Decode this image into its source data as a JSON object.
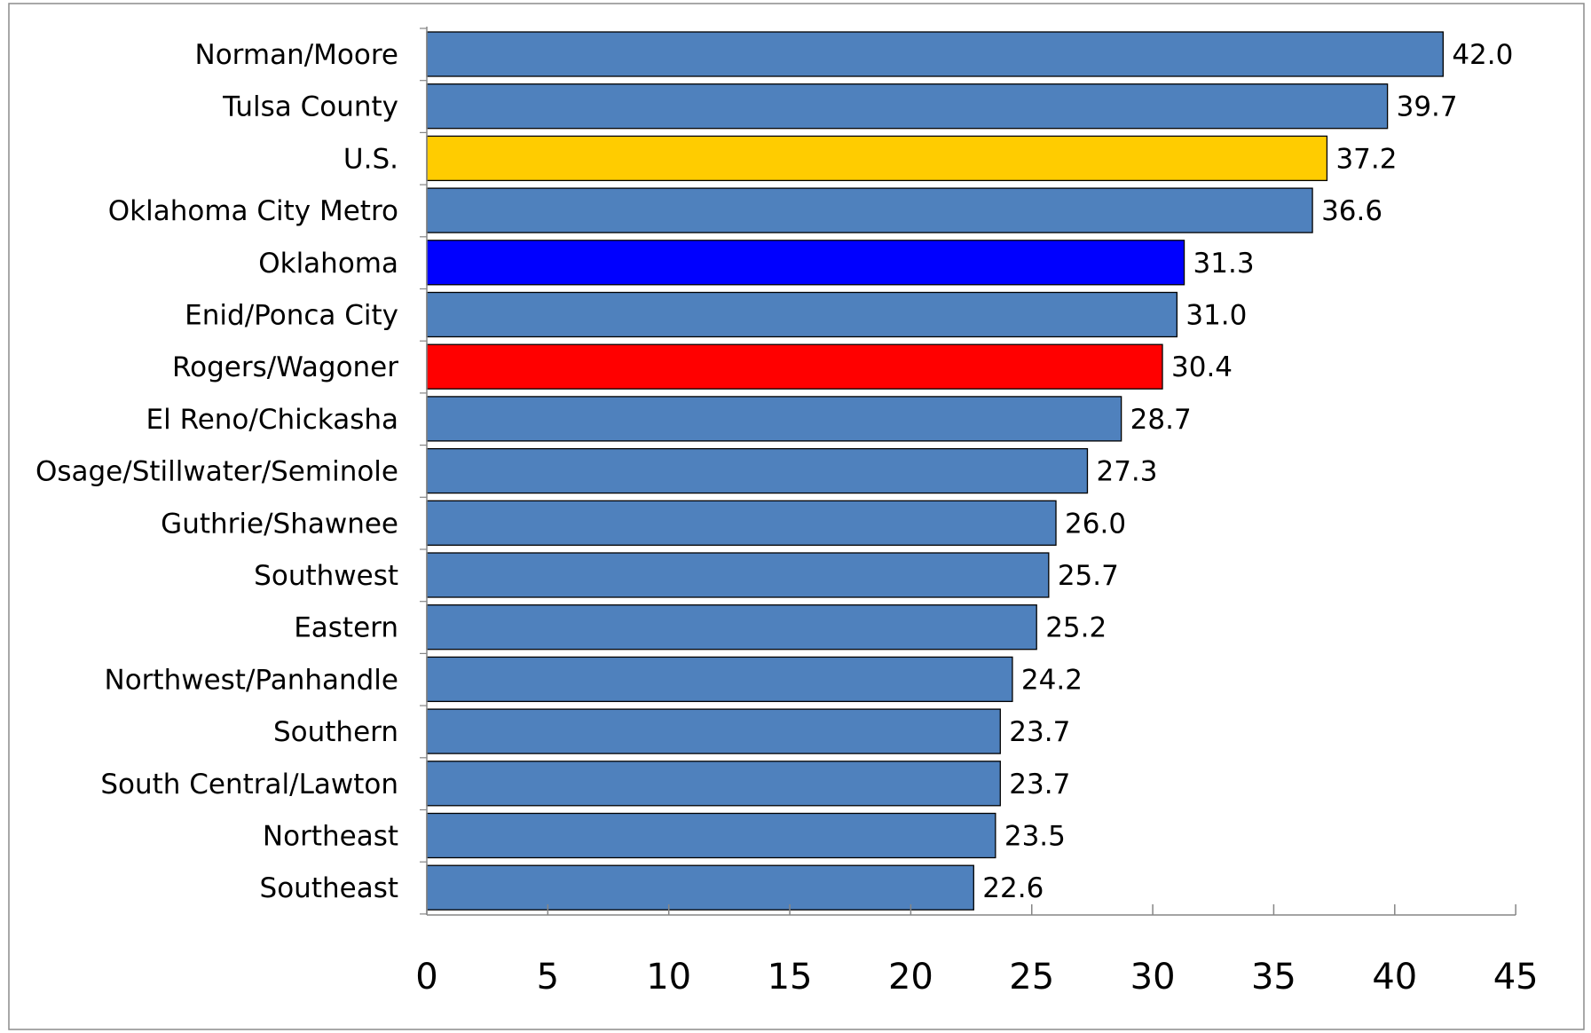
{
  "chart_data": {
    "type": "bar",
    "orientation": "horizontal",
    "title": "",
    "xlabel": "",
    "ylabel": "",
    "xlim": [
      0,
      45
    ],
    "x_ticks": [
      0,
      5,
      10,
      15,
      20,
      25,
      30,
      35,
      40,
      45
    ],
    "grid": false,
    "legend": "none",
    "categories": [
      "Norman/Moore",
      "Tulsa County",
      "U.S.",
      "Oklahoma City Metro",
      "Oklahoma",
      "Enid/Ponca City",
      "Rogers/Wagoner",
      "El Reno/Chickasha",
      "Osage/Stillwater/Seminole",
      "Guthrie/Shawnee",
      "Southwest",
      "Eastern",
      "Northwest/Panhandle",
      "Southern",
      "South Central/Lawton",
      "Northeast",
      "Southeast"
    ],
    "values": [
      42.0,
      39.7,
      37.2,
      36.6,
      31.3,
      31.0,
      30.4,
      28.7,
      27.3,
      26.0,
      25.7,
      25.2,
      24.2,
      23.7,
      23.7,
      23.5,
      22.6
    ],
    "value_labels": [
      "42.0",
      "39.7",
      "37.2",
      "36.6",
      "31.3",
      "31.0",
      "30.4",
      "28.7",
      "27.3",
      "26.0",
      "25.7",
      "25.2",
      "24.2",
      "23.7",
      "23.7",
      "23.5",
      "22.6"
    ],
    "bar_colors": [
      "#4f81bd",
      "#4f81bd",
      "#ffcc00",
      "#4f81bd",
      "#0000ff",
      "#4f81bd",
      "#ff0000",
      "#4f81bd",
      "#4f81bd",
      "#4f81bd",
      "#4f81bd",
      "#4f81bd",
      "#4f81bd",
      "#4f81bd",
      "#4f81bd",
      "#4f81bd",
      "#4f81bd"
    ],
    "default_bar_color": "#4f81bd",
    "title_color": "#1f3fbf"
  }
}
